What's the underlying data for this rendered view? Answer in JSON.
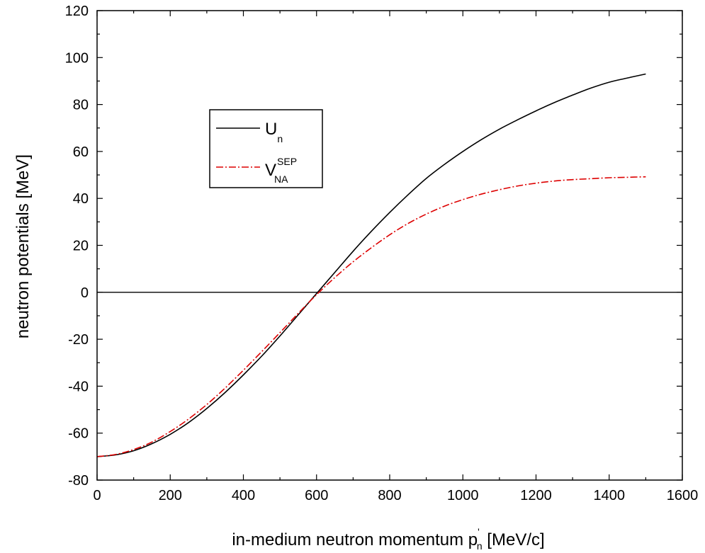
{
  "chart_data": {
    "type": "line",
    "xlabel": {
      "text": "in-medium neutron momentum p",
      "sub": "n",
      "sup": "'",
      "unit": " [MeV/c]"
    },
    "ylabel": "neutron potentials [MeV]",
    "xlim": [
      0,
      1600
    ],
    "ylim": [
      -80,
      120
    ],
    "xticks": [
      "0",
      "200",
      "400",
      "600",
      "800",
      "1000",
      "1200",
      "1400",
      "1600"
    ],
    "yticks": [
      "-80",
      "-60",
      "-40",
      "-20",
      "0",
      "20",
      "40",
      "60",
      "80",
      "100",
      "120"
    ],
    "grid": false,
    "legend": {
      "placement": "upper-left",
      "entries": [
        {
          "main": "U",
          "sub": "n",
          "sup": ""
        },
        {
          "main": "V",
          "sub": "NA",
          "sup": "SEP"
        }
      ]
    },
    "reference_line": {
      "y": 0,
      "color": "#000000"
    },
    "x": [
      0,
      50,
      100,
      150,
      200,
      250,
      300,
      350,
      400,
      450,
      500,
      550,
      600,
      650,
      700,
      750,
      800,
      850,
      900,
      950,
      1000,
      1050,
      1100,
      1150,
      1200,
      1250,
      1300,
      1350,
      1400,
      1450,
      1500
    ],
    "series": [
      {
        "name": "U_n",
        "color": "#000000",
        "style": "solid",
        "values": [
          -70,
          -69.3,
          -67.5,
          -64.5,
          -60.5,
          -55.5,
          -49.5,
          -42.7,
          -35.2,
          -27.2,
          -18.6,
          -9.6,
          -0.5,
          8.5,
          17.5,
          26,
          34,
          41.5,
          48.5,
          54.5,
          60,
          65,
          69.5,
          73.5,
          77.3,
          80.8,
          84,
          87,
          89.5,
          91.3,
          93
        ]
      },
      {
        "name": "V_NA^SEP",
        "color": "#dd0000",
        "style": "dashdot",
        "values": [
          -70,
          -69.1,
          -67,
          -63.8,
          -59.3,
          -54,
          -47.8,
          -40.8,
          -33.2,
          -25.3,
          -17.2,
          -9,
          -1,
          6.3,
          13,
          19,
          24.5,
          29.3,
          33.3,
          36.7,
          39.5,
          41.8,
          43.7,
          45.3,
          46.5,
          47.4,
          48,
          48.4,
          48.8,
          49,
          49.2
        ]
      }
    ]
  }
}
